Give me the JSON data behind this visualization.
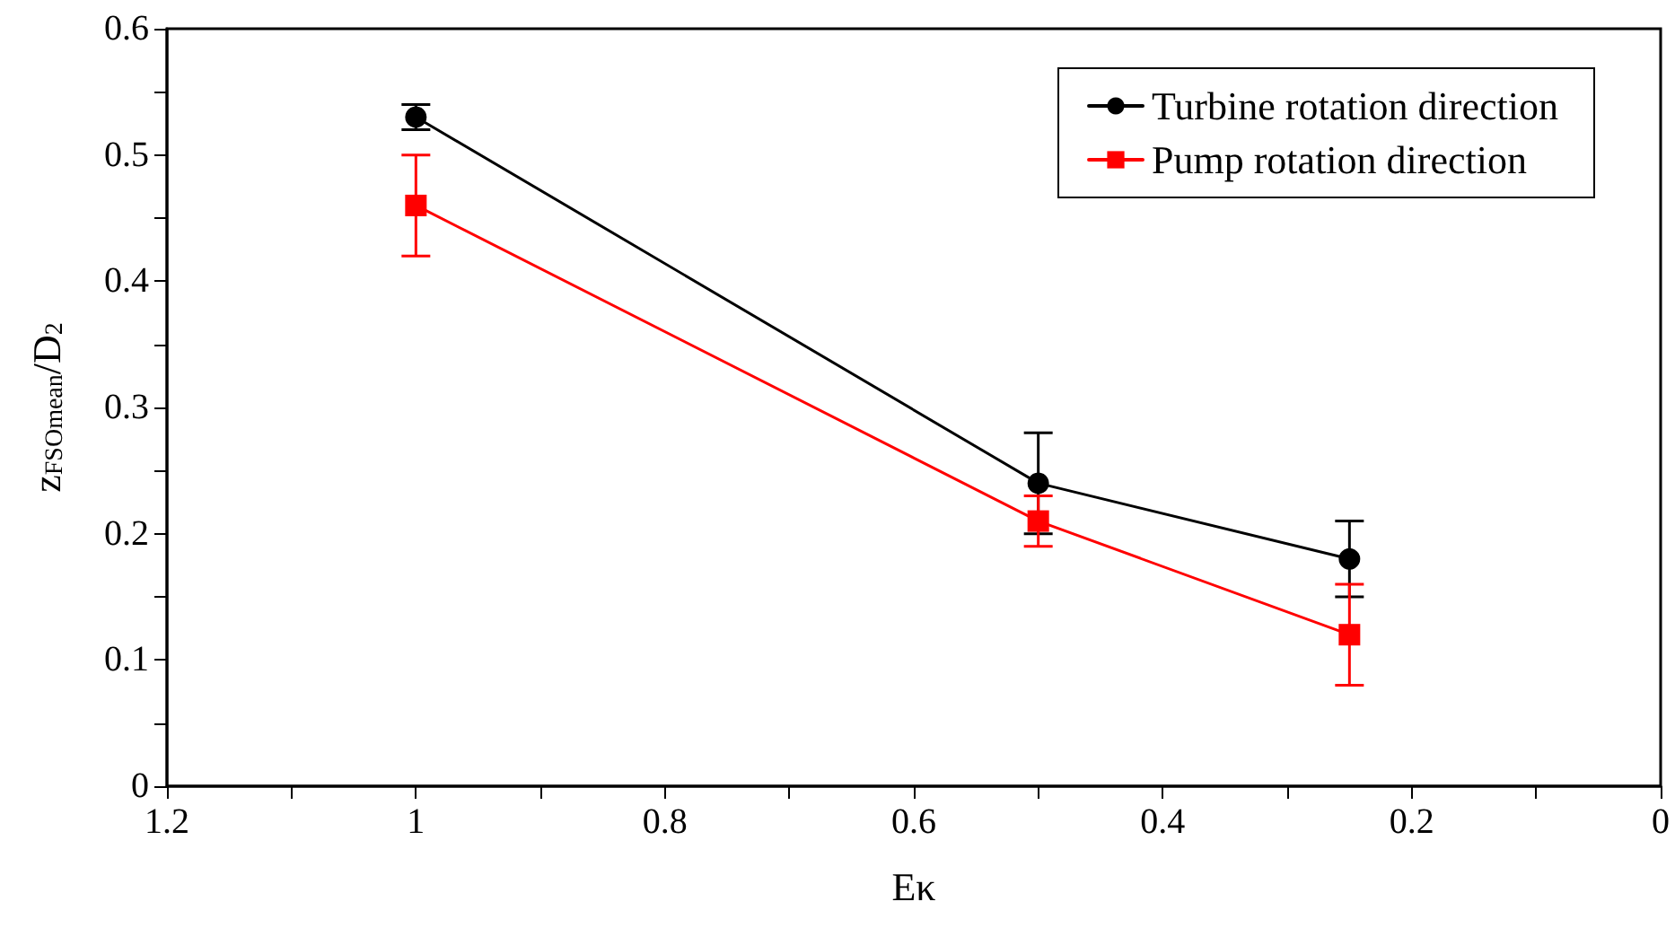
{
  "chart_data": {
    "type": "line",
    "xlabel": "Eκ",
    "ylabel": "z$_{FSOmean}$/D$_{2}$",
    "x": [
      1,
      0.5,
      0.25
    ],
    "series": [
      {
        "name": "Turbine rotation direction",
        "color": "#000000",
        "marker": "circle",
        "values": [
          0.53,
          0.24,
          0.18
        ],
        "errors": [
          0.01,
          0.04,
          0.03
        ]
      },
      {
        "name": "Pump rotation direction",
        "color": "#ff0000",
        "marker": "square",
        "values": [
          0.46,
          0.21,
          0.12
        ],
        "errors": [
          0.04,
          0.02,
          0.04
        ]
      }
    ],
    "xlim": [
      1.2,
      0
    ],
    "xticks": [
      1.2,
      {
        "value": 1.1,
        "label": null
      },
      1,
      {
        "value": 0.9,
        "label": null
      },
      0.8,
      {
        "value": 0.7,
        "label": null
      },
      0.6,
      {
        "value": 0.5,
        "label": null
      },
      0.4,
      {
        "value": 0.3,
        "label": null
      },
      0.2,
      {
        "value": 0.1,
        "label": null
      },
      0
    ],
    "ylim": [
      0,
      0.6
    ],
    "yticks": [
      0,
      {
        "value": 0.05,
        "label": null
      },
      0.1,
      {
        "value": 0.15,
        "label": null
      },
      0.2,
      {
        "value": 0.25,
        "label": null
      },
      0.3,
      {
        "value": 0.35,
        "label": null
      },
      0.4,
      {
        "value": 0.45,
        "label": null
      },
      0.5,
      {
        "value": 0.55,
        "label": null
      },
      0.6
    ],
    "grid": false,
    "legend": "top right",
    "line_style": "solid"
  }
}
